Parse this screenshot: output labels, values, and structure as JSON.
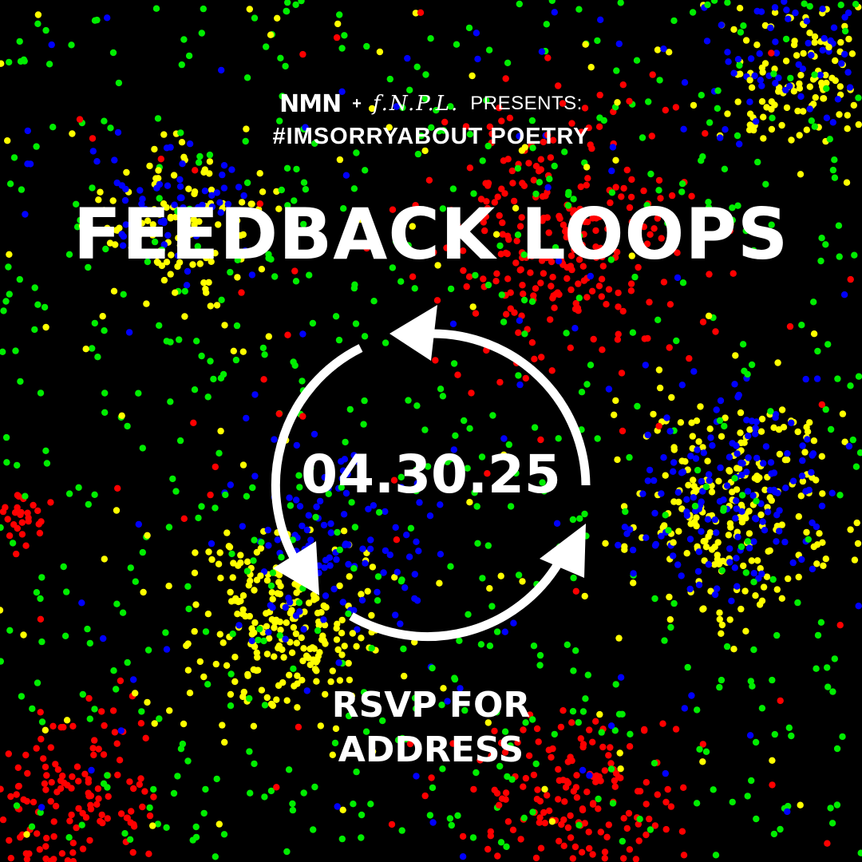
{
  "header": {
    "logo_nmn": "NMN",
    "plus": "+",
    "logo_fnpl": "f.N.P.L.",
    "presents": "PRESENTS:"
  },
  "hashtag": "#IMSORRYABOUT POETRY",
  "title": "FEEDBACK LOOPS",
  "date": "04.30.25",
  "rsvp_line1": "RSVP FOR",
  "rsvp_line2": "ADDRESS",
  "loop_icon": "circular-arrows-icon",
  "colors": {
    "background": "#000000",
    "text": "#ffffff",
    "dot_red": "#ff0000",
    "dot_green": "#00ee00",
    "dot_blue": "#0000ff",
    "dot_yellow": "#ffff00"
  }
}
